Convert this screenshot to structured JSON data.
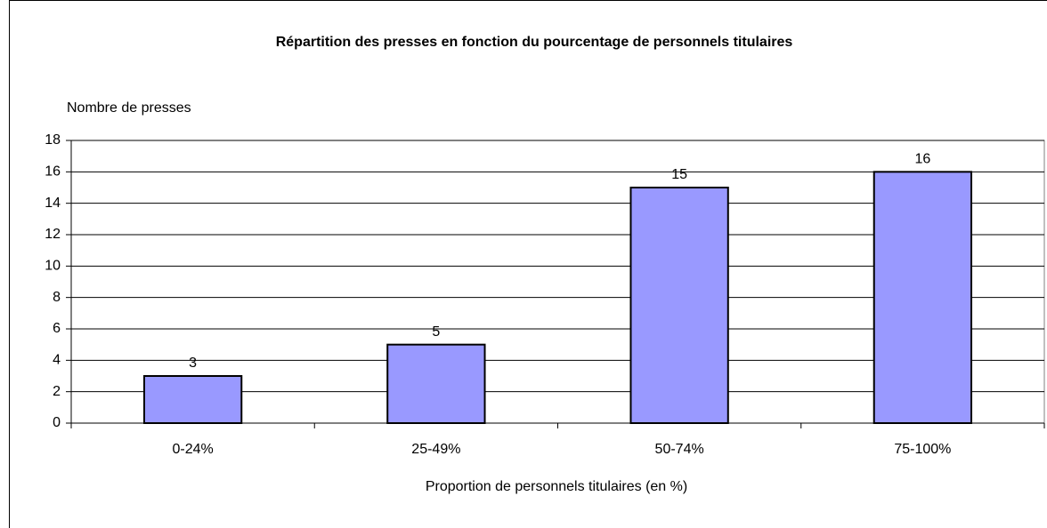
{
  "chart_data": {
    "type": "bar",
    "title": "Répartition des presses en fonction du pourcentage de personnels titulaires",
    "y_label": "Nombre de presses",
    "x_label": "Proportion de personnels titulaires (en %)",
    "categories": [
      "0-24%",
      "25-49%",
      "50-74%",
      "75-100%"
    ],
    "values": [
      3,
      5,
      15,
      16
    ],
    "color": "#9999ff",
    "ylim": [
      0,
      18
    ],
    "yticks": [
      0,
      2,
      4,
      6,
      8,
      10,
      12,
      14,
      16,
      18
    ],
    "grid": true
  }
}
